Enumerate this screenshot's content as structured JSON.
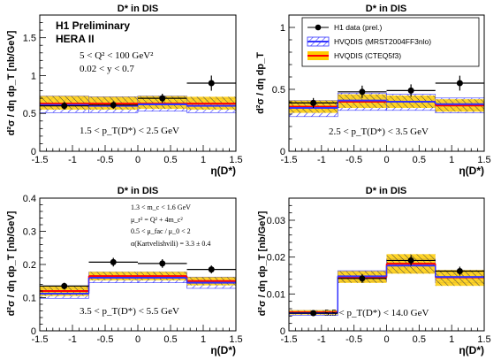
{
  "global": {
    "x_ticks": [
      "-1.5",
      "-1",
      "-0.5",
      "0",
      "0.5",
      "1",
      "1.5"
    ],
    "xlabel": "η(D*)",
    "xlim": [
      -1.5,
      1.5
    ],
    "colors": {
      "data": "#000000",
      "mrst_hatch": "#3333ff",
      "mrst_line": "#3333ff",
      "cteq_band": "#ffcc00",
      "cteq_line": "#ff0000",
      "hatch_dark": "#444444"
    }
  },
  "panel_texts": {
    "p1": {
      "title": "D* in DIS",
      "ylabel": "d²σ / dη dp_T [nb/GeV]",
      "label1": "H1 Preliminary",
      "label2": "HERA II",
      "kin1": "5 < Q² < 100 GeV²",
      "kin2": "0.02 < y < 0.7",
      "pt": "1.5 < p_T(D*) < 2.5 GeV",
      "yt": [
        "0",
        "0.5",
        "1",
        "1.5"
      ]
    },
    "p2": {
      "title": "D* in DIS",
      "ylabel": "d²σ / dη dp_T",
      "pt": "2.5 < p_T(D*) < 3.5 GeV",
      "yt": [
        "0",
        "0.5",
        "1"
      ],
      "leg1": "H1 data (prel.)",
      "leg2": "HVQDIS (MRST2004FF3nlo)",
      "leg3": "HVQDIS (CTEQ5f3)"
    },
    "p3": {
      "title": "D* in DIS",
      "ylabel": "d²σ / dη dp_T [nb/GeV]",
      "pt": "3.5 < p_T(D*) < 5.5 GeV",
      "yt": [
        "0",
        "0.1",
        "0.2",
        "0.3",
        "0.4"
      ],
      "par1": "1.3 < m_c < 1.6 GeV",
      "par2": "μ_r² = Q² + 4m_c²",
      "par3": "0.5 < μ_fac / μ_0 < 2",
      "par4": "α(Kartvelishvili) = 3.3 ± 0.4"
    },
    "p4": {
      "title": "D* in DIS",
      "ylabel": "d²σ / dη dp_T [nb/GeV]",
      "pt": "5.5 < p_T(D*) < 14.0 GeV",
      "yt": [
        "0",
        "0.01",
        "0.02",
        "0.03"
      ]
    }
  },
  "chart_data": [
    {
      "type": "line",
      "title": "D* in DIS",
      "xlabel": "η(D*)",
      "ylabel": "d²σ / dη dp_T [nb/GeV]",
      "xlim": [
        -1.5,
        1.5
      ],
      "ylim": [
        0,
        1.8
      ],
      "bin_edges": [
        -1.5,
        -0.75,
        0,
        0.75,
        1.5
      ],
      "series": [
        {
          "name": "H1 data (prel.)",
          "x": [
            -1.125,
            -0.375,
            0.375,
            1.125
          ],
          "y": [
            0.6,
            0.61,
            0.7,
            0.9
          ],
          "err": [
            0.05,
            0.05,
            0.06,
            0.1
          ]
        },
        {
          "name": "HVQDIS (MRST2004FF3nlo)",
          "central": [
            0.61,
            0.6,
            0.62,
            0.6
          ],
          "low": [
            0.51,
            0.51,
            0.53,
            0.51
          ],
          "high": [
            0.73,
            0.72,
            0.73,
            0.7
          ]
        },
        {
          "name": "HVQDIS (CTEQ5f3)",
          "central": [
            0.63,
            0.63,
            0.63,
            0.63
          ],
          "low": [
            0.55,
            0.55,
            0.56,
            0.55
          ],
          "high": [
            0.73,
            0.72,
            0.73,
            0.72
          ]
        }
      ]
    },
    {
      "type": "line",
      "title": "D* in DIS",
      "xlabel": "η(D*)",
      "ylabel": "d²σ / dη dp_T",
      "xlim": [
        -1.5,
        1.5
      ],
      "ylim": [
        0,
        1.1
      ],
      "bin_edges": [
        -1.5,
        -0.75,
        0,
        0.75,
        1.5
      ],
      "series": [
        {
          "name": "H1 data (prel.)",
          "x": [
            -1.125,
            -0.375,
            0.375,
            1.125
          ],
          "y": [
            0.39,
            0.48,
            0.49,
            0.55
          ],
          "err": [
            0.04,
            0.05,
            0.05,
            0.06
          ]
        },
        {
          "name": "HVQDIS (MRST2004FF3nlo)",
          "central": [
            0.35,
            0.41,
            0.4,
            0.38
          ],
          "low": [
            0.28,
            0.33,
            0.33,
            0.31
          ],
          "high": [
            0.41,
            0.47,
            0.46,
            0.43
          ]
        },
        {
          "name": "HVQDIS (CTEQ5f3)",
          "central": [
            0.36,
            0.4,
            0.4,
            0.37
          ],
          "low": [
            0.31,
            0.35,
            0.35,
            0.32
          ],
          "high": [
            0.41,
            0.46,
            0.45,
            0.42
          ]
        }
      ]
    },
    {
      "type": "line",
      "title": "D* in DIS",
      "xlabel": "η(D*)",
      "ylabel": "d²σ / dη dp_T [nb/GeV]",
      "xlim": [
        -1.5,
        1.5
      ],
      "ylim": [
        0,
        0.4
      ],
      "bin_edges": [
        -1.5,
        -0.75,
        0,
        0.75,
        1.5
      ],
      "series": [
        {
          "name": "H1 data (prel.)",
          "x": [
            -1.125,
            -0.375,
            0.375,
            1.125
          ],
          "y": [
            0.135,
            0.207,
            0.203,
            0.185
          ],
          "err": [
            0.01,
            0.013,
            0.013,
            0.012
          ]
        },
        {
          "name": "HVQDIS (MRST2004FF3nlo)",
          "central": [
            0.112,
            0.16,
            0.16,
            0.145
          ],
          "low": [
            0.098,
            0.145,
            0.145,
            0.128
          ],
          "high": [
            0.128,
            0.177,
            0.177,
            0.162
          ]
        },
        {
          "name": "HVQDIS (CTEQ5f3)",
          "central": [
            0.12,
            0.165,
            0.165,
            0.15
          ],
          "low": [
            0.105,
            0.152,
            0.152,
            0.137
          ],
          "high": [
            0.134,
            0.178,
            0.178,
            0.162
          ]
        }
      ]
    },
    {
      "type": "line",
      "title": "D* in DIS",
      "xlabel": "η(D*)",
      "ylabel": "d²σ / dη dp_T [nb/GeV]",
      "xlim": [
        -1.5,
        1.5
      ],
      "ylim": [
        0,
        0.036
      ],
      "bin_edges": [
        -1.5,
        -0.75,
        0,
        0.75,
        1.5
      ],
      "series": [
        {
          "name": "H1 data (prel.)",
          "x": [
            -1.125,
            -0.375,
            0.375,
            1.125
          ],
          "y": [
            0.0048,
            0.0142,
            0.0191,
            0.0162
          ],
          "err": [
            0.0004,
            0.0012,
            0.0014,
            0.0012
          ]
        },
        {
          "name": "HVQDIS (MRST2004FF3nlo)",
          "central": [
            0.0048,
            0.0148,
            0.0177,
            0.0146
          ],
          "low": [
            0.0042,
            0.0133,
            0.0158,
            0.013
          ],
          "high": [
            0.0055,
            0.0163,
            0.0195,
            0.0162
          ]
        },
        {
          "name": "HVQDIS (CTEQ5f3)",
          "central": [
            0.005,
            0.0145,
            0.0182,
            0.0145
          ],
          "low": [
            0.0044,
            0.013,
            0.0155,
            0.0122
          ],
          "high": [
            0.0056,
            0.0162,
            0.0208,
            0.0165
          ]
        }
      ]
    }
  ]
}
